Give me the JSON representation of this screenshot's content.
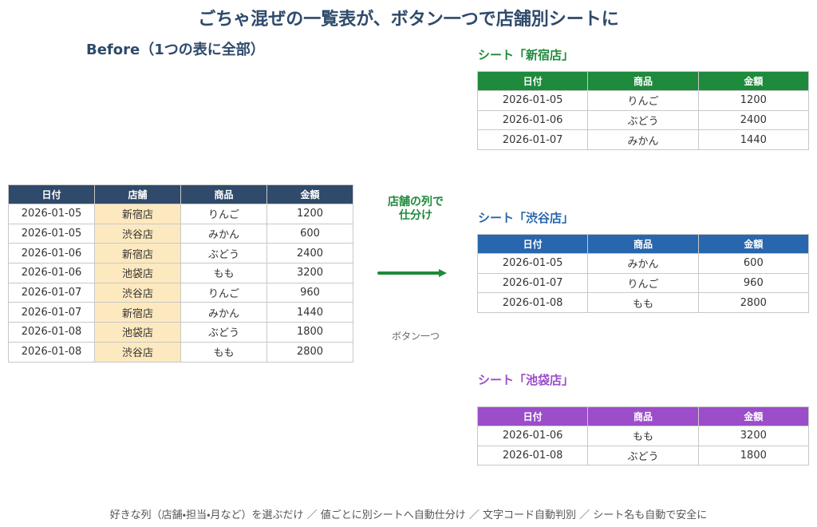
{
  "title": "ごちゃ混ぜの一覧表が、ボタン一つで店舗別シートに",
  "before": {
    "title": "Before（1つの表に全部）",
    "table": {
      "headers": [
        "日付",
        "店舗",
        "商品",
        "金額"
      ],
      "rows": [
        [
          "2026-01-05",
          "新宿店",
          "りんご",
          1200
        ],
        [
          "2026-01-05",
          "渋谷店",
          "みかん",
          600
        ],
        [
          "2026-01-06",
          "新宿店",
          "ぶどう",
          2400
        ],
        [
          "2026-01-06",
          "池袋店",
          "もも",
          3200
        ],
        [
          "2026-01-07",
          "渋谷店",
          "りんご",
          960
        ],
        [
          "2026-01-07",
          "新宿店",
          "みかん",
          1440
        ],
        [
          "2026-01-08",
          "池袋店",
          "ぶどう",
          1800
        ],
        [
          "2026-01-08",
          "渋谷店",
          "もも",
          2800
        ]
      ]
    }
  },
  "arrow": {
    "label": [
      "店舗の列で",
      "仕分け"
    ],
    "caption": "ボタン一つ"
  },
  "sheets": [
    {
      "title": "シート「新宿店」",
      "table": {
        "headers": [
          "日付",
          "商品",
          "金額"
        ],
        "rows": [
          [
            "2026-01-05",
            "りんご",
            1200
          ],
          [
            "2026-01-06",
            "ぶどう",
            2400
          ],
          [
            "2026-01-07",
            "みかん",
            1440
          ]
        ]
      }
    },
    {
      "title": "シート「渋谷店」",
      "table": {
        "headers": [
          "日付",
          "商品",
          "金額"
        ],
        "rows": [
          [
            "2026-01-05",
            "みかん",
            600
          ],
          [
            "2026-01-07",
            "りんご",
            960
          ],
          [
            "2026-01-08",
            "もも",
            2800
          ]
        ]
      }
    },
    {
      "title": "シート「池袋店」",
      "table": {
        "headers": [
          "日付",
          "商品",
          "金額"
        ],
        "rows": [
          [
            "2026-01-06",
            "もも",
            3200
          ],
          [
            "2026-01-08",
            "ぶどう",
            1800
          ]
        ]
      }
    }
  ],
  "footer": "好きな列（店舗・担当・月など）を選ぶだけ ／ 値ごとに別シートへ自動仕分け ／ 文字コード自動判別 ／ シート名も自動で安全に"
}
